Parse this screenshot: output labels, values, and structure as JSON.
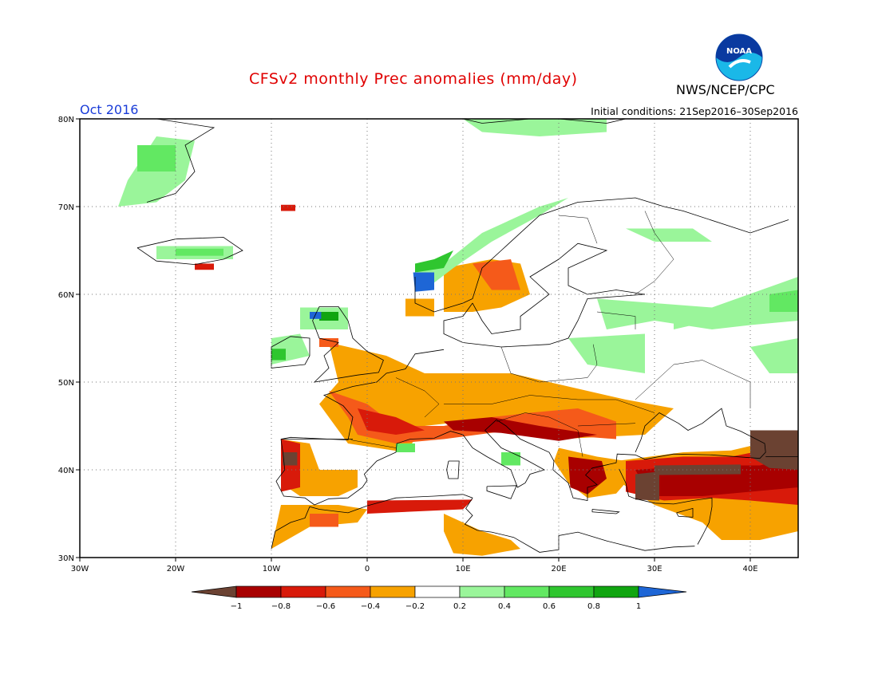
{
  "title": "CFSv2 monthly Prec anomalies (mm/day)",
  "month_label": "Oct 2016",
  "initial_conditions": "Initial conditions: 21Sep2016–30Sep2016",
  "agency": "NWS/NCEP/CPC",
  "logo_text": "NOAA",
  "colors": {
    "title": "#e00000",
    "month": "#1a3cd8",
    "n10": "#6b4232",
    "n8": "#a80000",
    "n6": "#d81a0a",
    "n4": "#f55a1a",
    "n2": "#f7a200",
    "neutral": "#ffffff",
    "p2": "#9af59a",
    "p4": "#62e862",
    "p6": "#2fc62f",
    "p8": "#10a510",
    "p10": "#1e66d6",
    "coast": "#000000"
  },
  "map": {
    "lat_labels": [
      "80N",
      "70N",
      "60N",
      "50N",
      "40N",
      "30N"
    ],
    "lon_labels": [
      "30W",
      "20W",
      "10W",
      "0",
      "10E",
      "20E",
      "30E",
      "40E"
    ]
  },
  "colorbar": {
    "tick_labels": [
      "−1",
      "−0.8",
      "−0.6",
      "−0.4",
      "−0.2",
      "0.2",
      "0.4",
      "0.6",
      "0.8",
      "1"
    ]
  }
}
